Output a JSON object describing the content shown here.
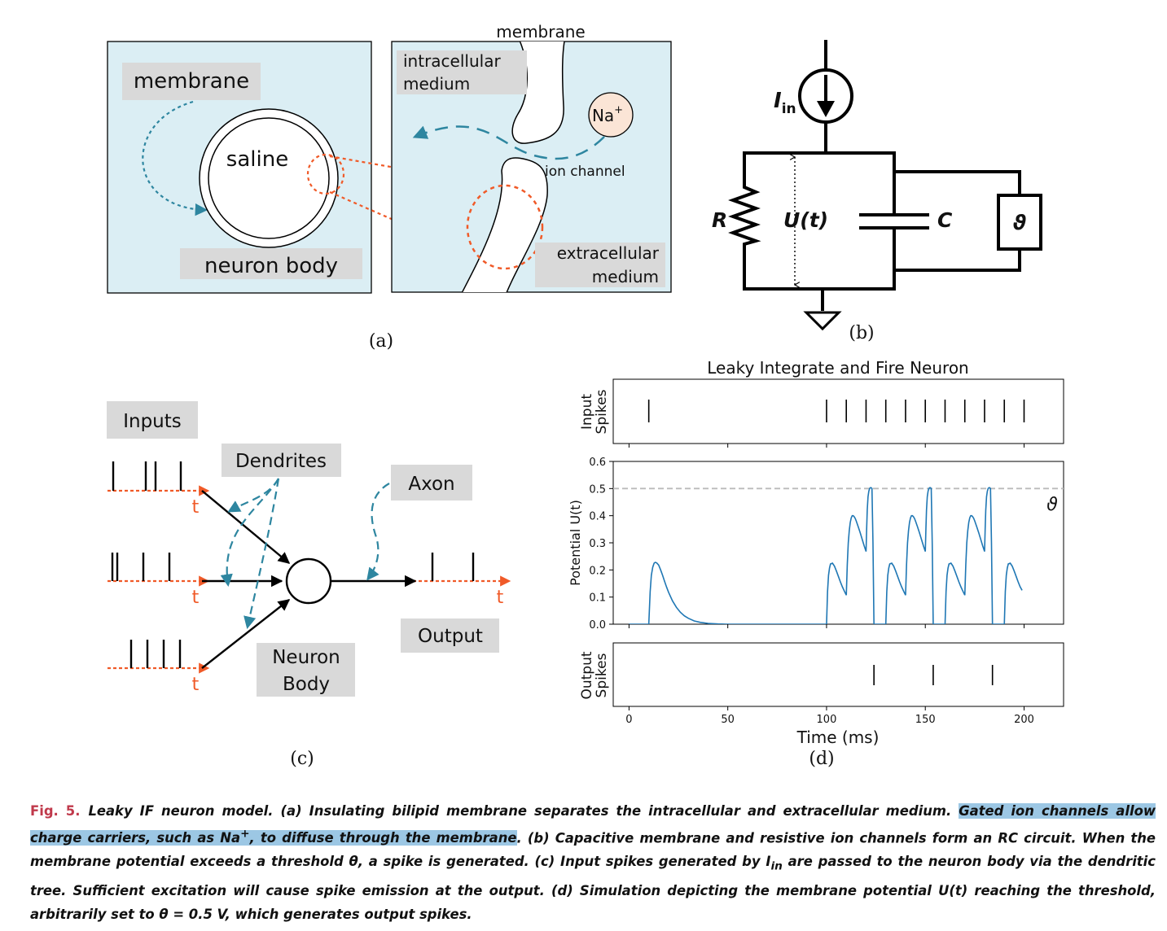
{
  "panel_a": {
    "label": "(a)",
    "membrane_label": "membrane",
    "saline_label": "saline",
    "neuron_body_label": "neuron body",
    "membrane_zoom_label": "membrane",
    "intracellular_line1": "intracellular",
    "intracellular_line2": "medium",
    "ion_base": "Na",
    "ion_sup": "+",
    "ion_channel_label": "ion channel",
    "extracellular_line1": "extracellular",
    "extracellular_line2": "medium",
    "colors": {
      "background": "#dbeef4",
      "box_gray": "#d9d9d9",
      "dashed_blue": "#2e86a0",
      "dashed_orange": "#f05a28",
      "ion_fill": "#fbe5d6"
    }
  },
  "panel_b": {
    "label": "(b)",
    "current_base": "I",
    "current_sub": "in",
    "resistor_label": "R",
    "voltage_label": "U(t)",
    "capacitor_label": "C",
    "threshold_symbol": "ϑ"
  },
  "panel_c": {
    "label": "(c)",
    "inputs_label": "Inputs",
    "dendrites_label": "Dendrites",
    "axon_label": "Axon",
    "output_label": "Output",
    "neuron_body_line1": "Neuron",
    "neuron_body_line2": "Body",
    "time_label": "t",
    "colors": {
      "axis_orange": "#f05a28",
      "dashed_blue": "#2e86a0",
      "box_gray": "#d9d9d9"
    }
  },
  "panel_d": {
    "label": "(d)",
    "chart_data": {
      "type": "line",
      "title": "Leaky Integrate and Fire Neuron",
      "xlabel": "Time (ms)",
      "xlim": [
        -8,
        220
      ],
      "xticks": [
        "0",
        "50",
        "100",
        "150",
        "200"
      ],
      "xtick_values": [
        0,
        50,
        100,
        150,
        200
      ],
      "input_ylabel": [
        "Input",
        "Spikes"
      ],
      "input_spike_times": [
        10,
        100,
        110,
        120,
        130,
        140,
        150,
        160,
        170,
        180,
        190,
        200
      ],
      "potential_ylabel": "Potential U(t)",
      "ylim": [
        0,
        0.6
      ],
      "yticks": [
        "0.0",
        "0.1",
        "0.2",
        "0.3",
        "0.4",
        "0.5",
        "0.6"
      ],
      "ytick_values": [
        0,
        0.1,
        0.2,
        0.3,
        0.4,
        0.5,
        0.6
      ],
      "threshold": 0.5,
      "threshold_label": "ϑ",
      "series": [
        {
          "x": [
            0,
            10,
            10.7,
            11.3,
            12,
            12.7,
            13.3,
            14,
            15,
            16,
            17,
            18,
            19,
            20,
            22,
            24,
            26,
            28,
            30,
            33,
            36,
            40,
            45,
            50,
            60,
            80,
            100,
            100.5,
            101,
            101.5,
            102,
            103,
            104,
            105,
            106,
            107,
            108,
            109,
            110,
            110.5,
            111,
            111.5,
            112,
            112.5,
            113,
            113.5,
            114,
            114.5,
            115,
            116,
            117,
            118,
            119,
            120,
            120.3,
            120.6,
            121,
            121.4,
            121.8,
            122.2,
            122.6,
            123,
            123.5,
            124,
            125,
            126,
            130,
            130.5,
            131,
            131.5,
            132,
            133,
            134,
            135,
            136,
            137,
            138,
            139,
            140,
            140.5,
            141,
            141.5,
            142,
            142.5,
            143,
            143.5,
            144,
            144.5,
            145,
            146,
            147,
            148,
            149,
            150,
            150.3,
            150.6,
            151,
            151.4,
            151.8,
            152.2,
            152.6,
            153,
            153.5,
            154,
            155,
            156,
            160,
            160.5,
            161,
            161.5,
            162,
            163,
            164,
            165,
            166,
            167,
            168,
            169,
            170,
            170.5,
            171,
            171.5,
            172,
            172.5,
            173,
            173.5,
            174,
            174.5,
            175,
            176,
            177,
            178,
            179,
            180,
            180.3,
            180.6,
            181,
            181.4,
            181.8,
            182.2,
            182.6,
            183,
            183.5,
            184,
            185,
            186,
            190,
            190.5,
            191,
            191.5,
            192,
            193,
            194,
            195,
            196,
            197,
            198,
            199
          ],
          "y": [
            0,
            0,
            0.12,
            0.18,
            0.21,
            0.225,
            0.228,
            0.226,
            0.218,
            0.2,
            0.18,
            0.158,
            0.137,
            0.118,
            0.086,
            0.062,
            0.044,
            0.031,
            0.022,
            0.012,
            0.007,
            0.003,
            0.001,
            0,
            0,
            0,
            0,
            0.12,
            0.18,
            0.207,
            0.222,
            0.225,
            0.214,
            0.196,
            0.176,
            0.156,
            0.138,
            0.122,
            0.107,
            0.22,
            0.3,
            0.345,
            0.375,
            0.392,
            0.4,
            0.4,
            0.396,
            0.39,
            0.381,
            0.36,
            0.338,
            0.314,
            0.29,
            0.268,
            0.35,
            0.42,
            0.47,
            0.49,
            0.5,
            0.503,
            0.503,
            0.5,
            0.3,
            0,
            0,
            0,
            0,
            0.12,
            0.18,
            0.207,
            0.222,
            0.225,
            0.214,
            0.196,
            0.176,
            0.156,
            0.138,
            0.122,
            0.107,
            0.22,
            0.3,
            0.345,
            0.375,
            0.392,
            0.4,
            0.4,
            0.396,
            0.39,
            0.381,
            0.36,
            0.338,
            0.314,
            0.29,
            0.268,
            0.35,
            0.42,
            0.47,
            0.49,
            0.5,
            0.503,
            0.503,
            0.5,
            0.3,
            0,
            0,
            0,
            0,
            0.12,
            0.18,
            0.207,
            0.222,
            0.225,
            0.214,
            0.196,
            0.176,
            0.156,
            0.138,
            0.122,
            0.107,
            0.22,
            0.3,
            0.345,
            0.375,
            0.392,
            0.4,
            0.4,
            0.396,
            0.39,
            0.381,
            0.36,
            0.338,
            0.314,
            0.29,
            0.268,
            0.35,
            0.42,
            0.47,
            0.49,
            0.5,
            0.503,
            0.503,
            0.5,
            0.3,
            0,
            0,
            0,
            0,
            0.12,
            0.18,
            0.207,
            0.222,
            0.225,
            0.214,
            0.196,
            0.176,
            0.156,
            0.138,
            0.125
          ]
        }
      ],
      "output_ylabel": [
        "Output",
        "Spikes"
      ],
      "output_spike_times": [
        124,
        154,
        184
      ],
      "colors": {
        "line": "#1f77b4",
        "threshold": "#bbbbbb"
      },
      "grid": false
    }
  },
  "caption": {
    "figure_label": "Fig. 5.",
    "part1": "Leaky IF neuron model. (a) Insulating bilipid membrane separates the intracellular and extracellular medium. ",
    "highlight_start": "Gated ion channels allow charge carriers, such as Na",
    "highlight_sup": "+",
    "highlight_end": ", to diffuse through the membrane",
    "part2": ". (b) Capacitive membrane and resistive ion channels form an RC circuit. When the membrane potential exceeds a threshold θ, a spike is generated. (c) Input spikes generated by I",
    "sub_in": "in",
    "part3": " are passed to the neuron body via the dendritic tree. Sufficient excitation will cause spike emission at the output. (d) Simulation depicting the membrane potential U(t) reaching the threshold, arbitrarily set to θ = 0.5 V, which generates output spikes."
  }
}
